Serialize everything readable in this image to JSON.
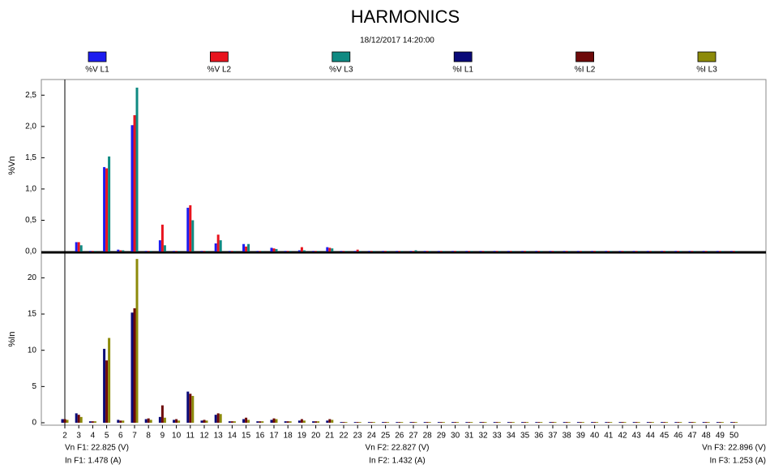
{
  "chart_data": [
    {
      "type": "bar",
      "title": "HARMONICS",
      "subtitle": "18/12/2017 14:20:00",
      "y_label": "%Vn",
      "ylim": [
        0,
        2.75
      ],
      "yticks": [
        {
          "value": 0,
          "label": "0,0"
        },
        {
          "value": 0.5,
          "label": "0,5"
        },
        {
          "value": 1,
          "label": "1,0"
        },
        {
          "value": 1.5,
          "label": "1,5"
        },
        {
          "value": 2,
          "label": "2,0"
        },
        {
          "value": 2.5,
          "label": "2,5"
        }
      ],
      "series": [
        {
          "name": "%V L1",
          "color": "#1c1cf0",
          "values": [
            0,
            0.15,
            0.01,
            1.35,
            0.03,
            2.02,
            0.01,
            0.18,
            0.01,
            0.7,
            0.01,
            0.13,
            0.01,
            0.12,
            0.01,
            0.06,
            0.01,
            0.02,
            0.01,
            0.07,
            0.01,
            0.01,
            0.01,
            0.01,
            0.01,
            0.01,
            0.01,
            0.01,
            0.01,
            0.01,
            0.01,
            0.01,
            0.01,
            0.01,
            0.01,
            0.01,
            0.01,
            0.01,
            0.01,
            0.01,
            0.01,
            0.01,
            0.01,
            0.01,
            0.01,
            0.01,
            0.01,
            0.01,
            0.01
          ]
        },
        {
          "name": "%V L2",
          "color": "#e8141e",
          "values": [
            0,
            0.15,
            0.01,
            1.33,
            0.02,
            2.18,
            0.01,
            0.43,
            0.01,
            0.74,
            0.01,
            0.27,
            0.01,
            0.08,
            0.01,
            0.05,
            0.01,
            0.07,
            0.01,
            0.06,
            0.01,
            0.03,
            0.01,
            0.01,
            0.01,
            0.01,
            0.01,
            0.01,
            0.01,
            0.01,
            0.01,
            0.01,
            0.01,
            0.01,
            0.01,
            0.01,
            0.01,
            0.01,
            0.01,
            0.01,
            0.01,
            0.01,
            0.01,
            0.01,
            0.01,
            0.01,
            0.01,
            0.01,
            0.01
          ]
        },
        {
          "name": "%V L3",
          "color": "#0f8a82",
          "values": [
            0,
            0.1,
            0.01,
            1.52,
            0.02,
            2.62,
            0.01,
            0.1,
            0.01,
            0.5,
            0.01,
            0.18,
            0.01,
            0.12,
            0.01,
            0.04,
            0.01,
            0.02,
            0.01,
            0.05,
            0.01,
            0.01,
            0.01,
            0.01,
            0.01,
            0.02,
            0.01,
            0.01,
            0.01,
            0.01,
            0.01,
            0.01,
            0.01,
            0.01,
            0.01,
            0.01,
            0.01,
            0.01,
            0.01,
            0.01,
            0.01,
            0.01,
            0.01,
            0.01,
            0.01,
            0.01,
            0.01,
            0.01,
            0.01
          ]
        }
      ]
    },
    {
      "type": "bar",
      "y_label": "%In",
      "categories": [
        "2",
        "3",
        "4",
        "5",
        "6",
        "7",
        "8",
        "9",
        "10",
        "11",
        "12",
        "13",
        "14",
        "15",
        "16",
        "17",
        "18",
        "19",
        "20",
        "21",
        "22",
        "23",
        "24",
        "25",
        "26",
        "27",
        "28",
        "29",
        "30",
        "31",
        "32",
        "33",
        "34",
        "35",
        "36",
        "37",
        "38",
        "39",
        "40",
        "41",
        "42",
        "43",
        "44",
        "45",
        "46",
        "47",
        "48",
        "49",
        "50"
      ],
      "ylim": [
        0,
        23.4
      ],
      "yticks": [
        0,
        5,
        10,
        15,
        20
      ],
      "series": [
        {
          "name": "%I L1",
          "color": "#0a0a78",
          "values": [
            0.5,
            1.3,
            0.2,
            10.2,
            0.4,
            15.2,
            0.5,
            0.8,
            0.4,
            4.3,
            0.3,
            1.1,
            0.2,
            0.5,
            0.2,
            0.4,
            0.2,
            0.3,
            0.2,
            0.3,
            0.1,
            0.1,
            0.1,
            0.1,
            0.1,
            0.1,
            0.1,
            0.1,
            0.1,
            0.1,
            0.1,
            0.1,
            0.1,
            0.1,
            0.1,
            0.1,
            0.1,
            0.1,
            0.1,
            0.1,
            0.1,
            0.1,
            0.1,
            0.1,
            0.1,
            0.1,
            0.1,
            0.1,
            0.1
          ]
        },
        {
          "name": "%I L2",
          "color": "#6e0a0a",
          "values": [
            0.5,
            1.1,
            0.2,
            8.6,
            0.3,
            15.8,
            0.6,
            2.4,
            0.5,
            4.0,
            0.4,
            1.3,
            0.2,
            0.7,
            0.2,
            0.6,
            0.2,
            0.5,
            0.2,
            0.5,
            0.1,
            0.1,
            0.1,
            0.1,
            0.1,
            0.1,
            0.1,
            0.1,
            0.1,
            0.1,
            0.1,
            0.1,
            0.1,
            0.1,
            0.1,
            0.1,
            0.1,
            0.1,
            0.1,
            0.1,
            0.1,
            0.1,
            0.1,
            0.1,
            0.1,
            0.1,
            0.1,
            0.1,
            0.1
          ]
        },
        {
          "name": "%I L3",
          "color": "#8c8a0a",
          "values": [
            0.4,
            0.8,
            0.2,
            11.7,
            0.3,
            22.6,
            0.4,
            0.7,
            0.3,
            3.7,
            0.3,
            1.2,
            0.2,
            0.4,
            0.2,
            0.5,
            0.2,
            0.3,
            0.2,
            0.4,
            0.1,
            0.1,
            0.1,
            0.1,
            0.1,
            0.1,
            0.1,
            0.1,
            0.1,
            0.1,
            0.1,
            0.1,
            0.1,
            0.1,
            0.1,
            0.1,
            0.1,
            0.1,
            0.1,
            0.1,
            0.1,
            0.1,
            0.1,
            0.1,
            0.1,
            0.1,
            0.1,
            0.1,
            0.1
          ]
        }
      ],
      "annotations": [
        "Vn F1: 22.825 (V)",
        "In F1: 1.478 (A)",
        "Vn F2: 22.827 (V)",
        "In F2: 1.432 (A)",
        "Vn F3: 22.896 (V)",
        "In F3: 1.253 (A)"
      ]
    }
  ]
}
